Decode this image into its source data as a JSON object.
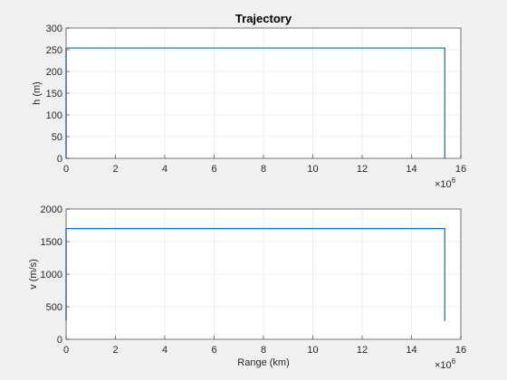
{
  "figure": {
    "background": "#f0f0f0",
    "axes_background": "#ffffff",
    "grid_color": "#dfdfdf",
    "line_color": "#0072bd"
  },
  "chart_data": [
    {
      "type": "line",
      "title": "Trajectory",
      "xlabel": "",
      "ylabel": "h (m)",
      "xlim": [
        0,
        16
      ],
      "ylim": [
        0,
        300
      ],
      "x_exponent_label": "×10",
      "x_exponent_power": "6",
      "grid": true,
      "x_ticks": [
        "0",
        "2",
        "4",
        "6",
        "8",
        "10",
        "12",
        "14",
        "16"
      ],
      "y_ticks": [
        "0",
        "50",
        "100",
        "150",
        "200",
        "250",
        "300"
      ],
      "series": [
        {
          "x": [
            0,
            0,
            15.35,
            15.35
          ],
          "y": [
            0,
            254,
            254,
            0
          ]
        }
      ]
    },
    {
      "type": "line",
      "title": "",
      "xlabel": "Range (km)",
      "ylabel": "v (m/s)",
      "xlim": [
        0,
        16
      ],
      "ylim": [
        0,
        2000
      ],
      "x_exponent_label": "×10",
      "x_exponent_power": "6",
      "grid": true,
      "x_ticks": [
        "0",
        "2",
        "4",
        "6",
        "8",
        "10",
        "12",
        "14",
        "16"
      ],
      "y_ticks": [
        "0",
        "500",
        "1000",
        "1500",
        "2000"
      ],
      "series": [
        {
          "x": [
            0,
            0,
            15.35,
            15.35
          ],
          "y": [
            290,
            1700,
            1700,
            280
          ]
        }
      ]
    }
  ]
}
